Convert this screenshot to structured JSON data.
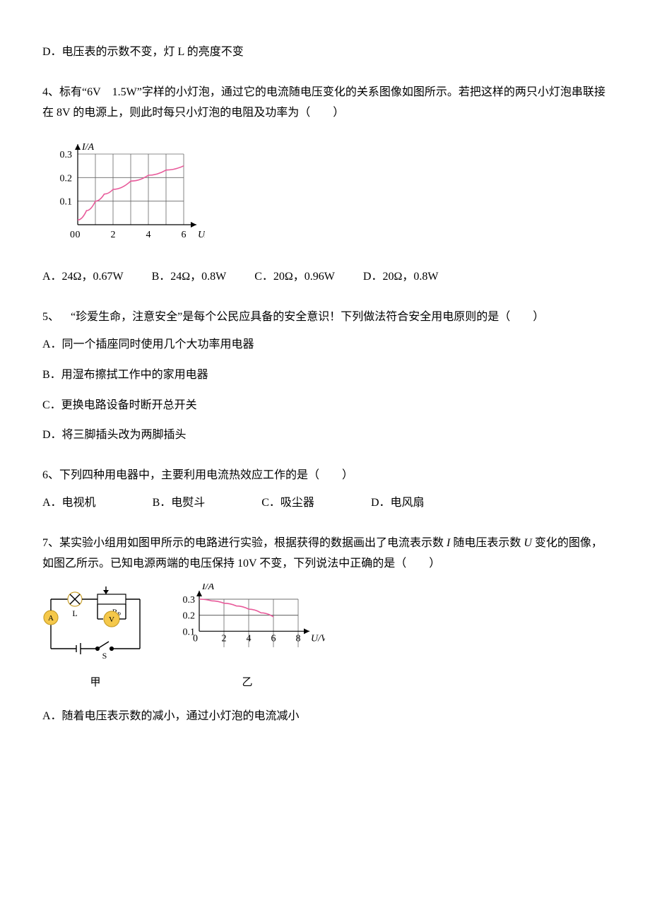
{
  "q3": {
    "optD": "D．电压表的示数不变，灯 L 的亮度不变"
  },
  "q4": {
    "text": "4、标有“6V 1.5W”字样的小灯泡，通过它的电流随电压变化的关系图像如图所示。若把这样的两只小灯泡串联接在 8V 的电源上，则此时每只小灯泡的电阻及功率为（  ）",
    "optA": "A．24Ω，0.67W",
    "optB": "B．24Ω，0.8W",
    "optC": "C．20Ω，0.96W",
    "optD": "D．20Ω，0.8W",
    "chart": {
      "type": "line",
      "x_label": "U/V",
      "y_label": "I/A",
      "xlim": [
        0,
        6
      ],
      "ylim": [
        0,
        0.3
      ],
      "xticks": [
        0,
        2,
        4,
        6
      ],
      "yticks": [
        0.1,
        0.2,
        0.3
      ],
      "xtick_label_0": "0",
      "grid_cols": 6,
      "grid_rows": 3,
      "grid_color": "#666666",
      "axis_color": "#000000",
      "curve_color": "#e85a9a",
      "curve_width": 1.6,
      "curve_points": [
        [
          0,
          0.02
        ],
        [
          0.5,
          0.06
        ],
        [
          1,
          0.1
        ],
        [
          1.5,
          0.13
        ],
        [
          2,
          0.15
        ],
        [
          3,
          0.185
        ],
        [
          4,
          0.21
        ],
        [
          5,
          0.232
        ],
        [
          6,
          0.25
        ]
      ],
      "label_fontsize": 14,
      "background_color": "#ffffff"
    }
  },
  "q5": {
    "text": "5、 “珍爱生命，注意安全”是每个公民应具备的安全意识！下列做法符合安全用电原则的是（  ）",
    "optA": "A．同一个插座同时使用几个大功率用电器",
    "optB": "B．用湿布擦拭工作中的家用电器",
    "optC": "C．更换电路设备时断开总开关",
    "optD": "D．将三脚插头改为两脚插头"
  },
  "q6": {
    "text": "6、下列四种用电器中，主要利用电流热效应工作的是（  ）",
    "optA": "A．电视机",
    "optB": "B．电熨斗",
    "optC": "C．吸尘器",
    "optD": "D．电风扇"
  },
  "q7": {
    "text_prefix": "7、某实验小组用如图甲所示的电路进行实验，根据获得的数据画出了电流表示数",
    "text_mid1": "随电压表示数",
    "text_mid2": "变化的图像，如图乙所示。已知电源两端的电压保持 10V 不变，下列说法中正确的是（  ）",
    "I_sym": "I",
    "U_sym": "U",
    "optA": "A．随着电压表示数的减小，通过小灯泡的电流减小",
    "caption1": "甲",
    "caption2": "乙",
    "circuit": {
      "labels": {
        "L": "L",
        "Rp": "R",
        "Rp_sub": "P",
        "P": "P",
        "S": "S",
        "A": "A",
        "V": "V"
      },
      "colors": {
        "wire": "#000000",
        "component": "#f5c84a",
        "meter_stroke": "#c9a02c",
        "wire_width": 1.4
      }
    },
    "chart": {
      "type": "line",
      "x_label": "U/V",
      "y_label": "I/A",
      "xlim": [
        0,
        8
      ],
      "ylim": [
        0,
        0.3
      ],
      "xticks": [
        0,
        2,
        4,
        6,
        8
      ],
      "yticks": [
        0.1,
        0.2,
        0.3
      ],
      "xtick_label_0": "0",
      "grid_cols": 4,
      "grid_rows": 2,
      "grid_color": "#666666",
      "axis_color": "#000000",
      "curve_color": "#e85a9a",
      "curve_width": 1.6,
      "curve_points": [
        [
          0,
          0.3
        ],
        [
          1,
          0.29
        ],
        [
          2,
          0.275
        ],
        [
          3,
          0.258
        ],
        [
          4,
          0.238
        ],
        [
          5,
          0.215
        ],
        [
          6,
          0.19
        ]
      ],
      "label_fontsize": 14,
      "background_color": "#ffffff"
    }
  }
}
